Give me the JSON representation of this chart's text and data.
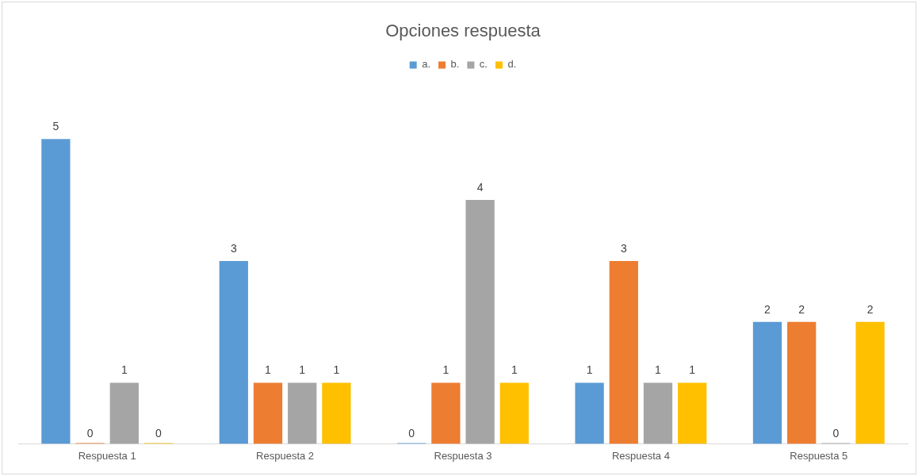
{
  "chart_data": {
    "type": "bar",
    "title": "Opciones respuesta",
    "categories": [
      "Respuesta 1",
      "Respuesta 2",
      "Respuesta 3",
      "Respuesta 4",
      "Respuesta 5"
    ],
    "series": [
      {
        "name": "a.",
        "color": "#5b9bd5",
        "values": [
          5,
          3,
          0,
          1,
          2
        ]
      },
      {
        "name": "b.",
        "color": "#ed7d31",
        "values": [
          0,
          1,
          1,
          3,
          2
        ]
      },
      {
        "name": "c.",
        "color": "#a5a5a5",
        "values": [
          1,
          1,
          4,
          1,
          0
        ]
      },
      {
        "name": "d.",
        "color": "#ffc000",
        "values": [
          0,
          1,
          1,
          1,
          2
        ]
      }
    ],
    "data_labels": true,
    "legend": "top",
    "grid": false
  }
}
